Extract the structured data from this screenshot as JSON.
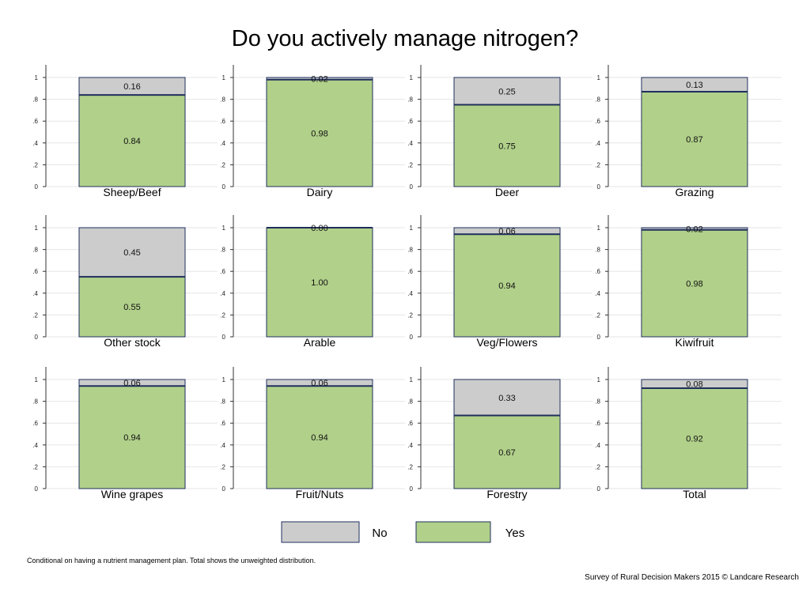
{
  "chart_data": {
    "type": "bar",
    "stacked": true,
    "title": "Do you actively manage nitrogen?",
    "ylim": [
      0,
      1
    ],
    "y_ticks": [
      0,
      0.2,
      0.4,
      0.6,
      0.8,
      1
    ],
    "y_tick_labels": [
      "0",
      ".2",
      ".4",
      ".6",
      ".8",
      "1"
    ],
    "grid": true,
    "legend_position": "bottom",
    "series": [
      {
        "name": "No",
        "color": "#cccccc"
      },
      {
        "name": "Yes",
        "color": "#b1d08a"
      }
    ],
    "panels": [
      {
        "category": "Sheep/Beef",
        "yes": 0.84,
        "no": 0.16,
        "yes_label": "0.84",
        "no_label": "0.16"
      },
      {
        "category": "Dairy",
        "yes": 0.98,
        "no": 0.02,
        "yes_label": "0.98",
        "no_label": "0.02"
      },
      {
        "category": "Deer",
        "yes": 0.75,
        "no": 0.25,
        "yes_label": "0.75",
        "no_label": "0.25"
      },
      {
        "category": "Grazing",
        "yes": 0.87,
        "no": 0.13,
        "yes_label": "0.87",
        "no_label": "0.13"
      },
      {
        "category": "Other stock",
        "yes": 0.55,
        "no": 0.45,
        "yes_label": "0.55",
        "no_label": "0.45"
      },
      {
        "category": "Arable",
        "yes": 1.0,
        "no": 0.0,
        "yes_label": "1.00",
        "no_label": "0.00"
      },
      {
        "category": "Veg/Flowers",
        "yes": 0.94,
        "no": 0.06,
        "yes_label": "0.94",
        "no_label": "0.06"
      },
      {
        "category": "Kiwifruit",
        "yes": 0.98,
        "no": 0.02,
        "yes_label": "0.98",
        "no_label": "0.02"
      },
      {
        "category": "Wine grapes",
        "yes": 0.94,
        "no": 0.06,
        "yes_label": "0.94",
        "no_label": "0.06"
      },
      {
        "category": "Fruit/Nuts",
        "yes": 0.94,
        "no": 0.06,
        "yes_label": "0.94",
        "no_label": "0.06"
      },
      {
        "category": "Forestry",
        "yes": 0.67,
        "no": 0.33,
        "yes_label": "0.67",
        "no_label": "0.33"
      },
      {
        "category": "Total",
        "yes": 0.92,
        "no": 0.08,
        "yes_label": "0.92",
        "no_label": "0.08"
      }
    ]
  },
  "colors": {
    "yes_fill": "#b1d08a",
    "no_fill": "#cccccc",
    "bar_outline": "#1f2f5c",
    "grid": "#e6e6e6"
  },
  "footnote": "Conditional on having a nutrient management plan. Total shows the unweighted distribution.",
  "credit": "Survey of Rural Decision Makers 2015 © Landcare Research"
}
